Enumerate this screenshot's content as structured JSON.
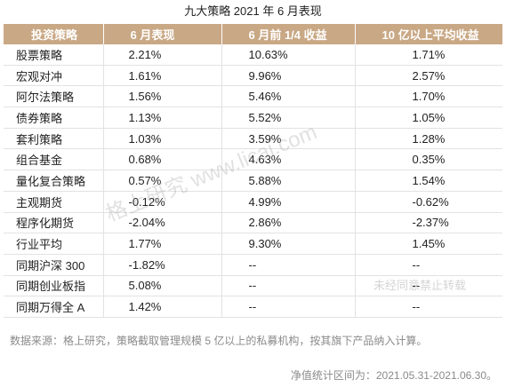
{
  "title": "九大策略 2021 年 6 月表现",
  "headers": [
    "投资策略",
    "6 月表现",
    "6 月前 1/4 收益",
    "10 亿以上平均收益"
  ],
  "rows": [
    [
      "股票策略",
      "2.21%",
      "10.63%",
      "1.71%"
    ],
    [
      "宏观对冲",
      "1.61%",
      "9.96%",
      "2.57%"
    ],
    [
      "阿尔法策略",
      "1.56%",
      "5.46%",
      "1.70%"
    ],
    [
      "债券策略",
      "1.13%",
      "5.52%",
      "1.05%"
    ],
    [
      "套利策略",
      "1.03%",
      "3.59%",
      "1.28%"
    ],
    [
      "组合基金",
      "0.68%",
      "4.63%",
      "0.35%"
    ],
    [
      "量化复合策略",
      "0.57%",
      "5.88%",
      "1.54%"
    ],
    [
      "主观期货",
      "-0.12%",
      "4.99%",
      "-0.62%"
    ],
    [
      "程序化期货",
      "-2.04%",
      "2.86%",
      "-2.37%"
    ],
    [
      "行业平均",
      "1.77%",
      "9.30%",
      "1.45%"
    ],
    [
      "同期沪深 300",
      "-1.82%",
      "--",
      "--"
    ],
    [
      "同期创业板指",
      "5.08%",
      "--",
      "--"
    ],
    [
      "同期万得全 A",
      "1.42%",
      "--",
      "--"
    ]
  ],
  "footnote_source": "数据来源：格上研究，策略截取管理规模 5 亿以上的私募机构，按其旗下产品纳入计算。",
  "footnote_period": "净值统计区间为：2021.05.31-2021.06.30。",
  "watermark_main": "格上研究  www.licai.com",
  "watermark_small": "未经同意禁止转载",
  "colors": {
    "header_bg": "#c9a885",
    "header_text": "#ffffff",
    "note_text": "#8a8a8a"
  }
}
